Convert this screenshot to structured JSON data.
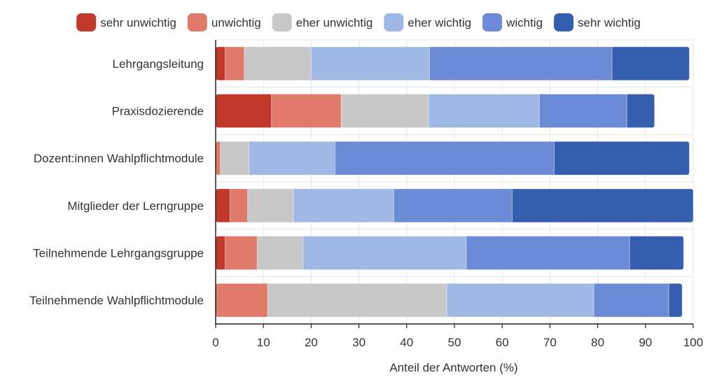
{
  "chart_data": {
    "type": "bar",
    "orientation": "horizontal",
    "stacked": true,
    "categories": [
      "Lehrgangsleitung",
      "Praxisdozierende",
      "Dozent:innen Wahlpflichtmodule",
      "Mitglieder der Lerngruppe",
      "Teilnehmende Lehrgangsgruppe",
      "Teilnehmende Wahlpflichtmodule"
    ],
    "series": [
      {
        "name": "sehr unwichtig",
        "color": "#c0392b",
        "values": [
          2.0,
          11.7,
          0.0,
          3.0,
          2.0,
          0.3
        ]
      },
      {
        "name": "unwichtig",
        "color": "#e07b6c",
        "values": [
          4.0,
          14.6,
          1.0,
          3.7,
          6.7,
          10.6
        ]
      },
      {
        "name": "eher unwichtig",
        "color": "#c8c8c8",
        "values": [
          14.0,
          18.3,
          6.0,
          9.6,
          9.6,
          37.5
        ]
      },
      {
        "name": "eher wichtig",
        "color": "#a0b8e4",
        "values": [
          24.8,
          23.2,
          18.0,
          21.0,
          34.2,
          30.8
        ]
      },
      {
        "name": "wichtig",
        "color": "#6c8bd6",
        "values": [
          38.2,
          18.3,
          45.9,
          24.8,
          34.2,
          15.7
        ]
      },
      {
        "name": "sehr wichtig",
        "color": "#355fae",
        "values": [
          16.2,
          5.8,
          28.3,
          37.9,
          11.3,
          2.8
        ]
      }
    ],
    "xlabel": "Anteil der Antworten (%)",
    "ylabel": "",
    "xlim": [
      0,
      100
    ],
    "xticks": [
      0,
      10,
      20,
      30,
      40,
      50,
      60,
      70,
      80,
      90,
      100
    ],
    "grid": true,
    "legend": "top"
  }
}
